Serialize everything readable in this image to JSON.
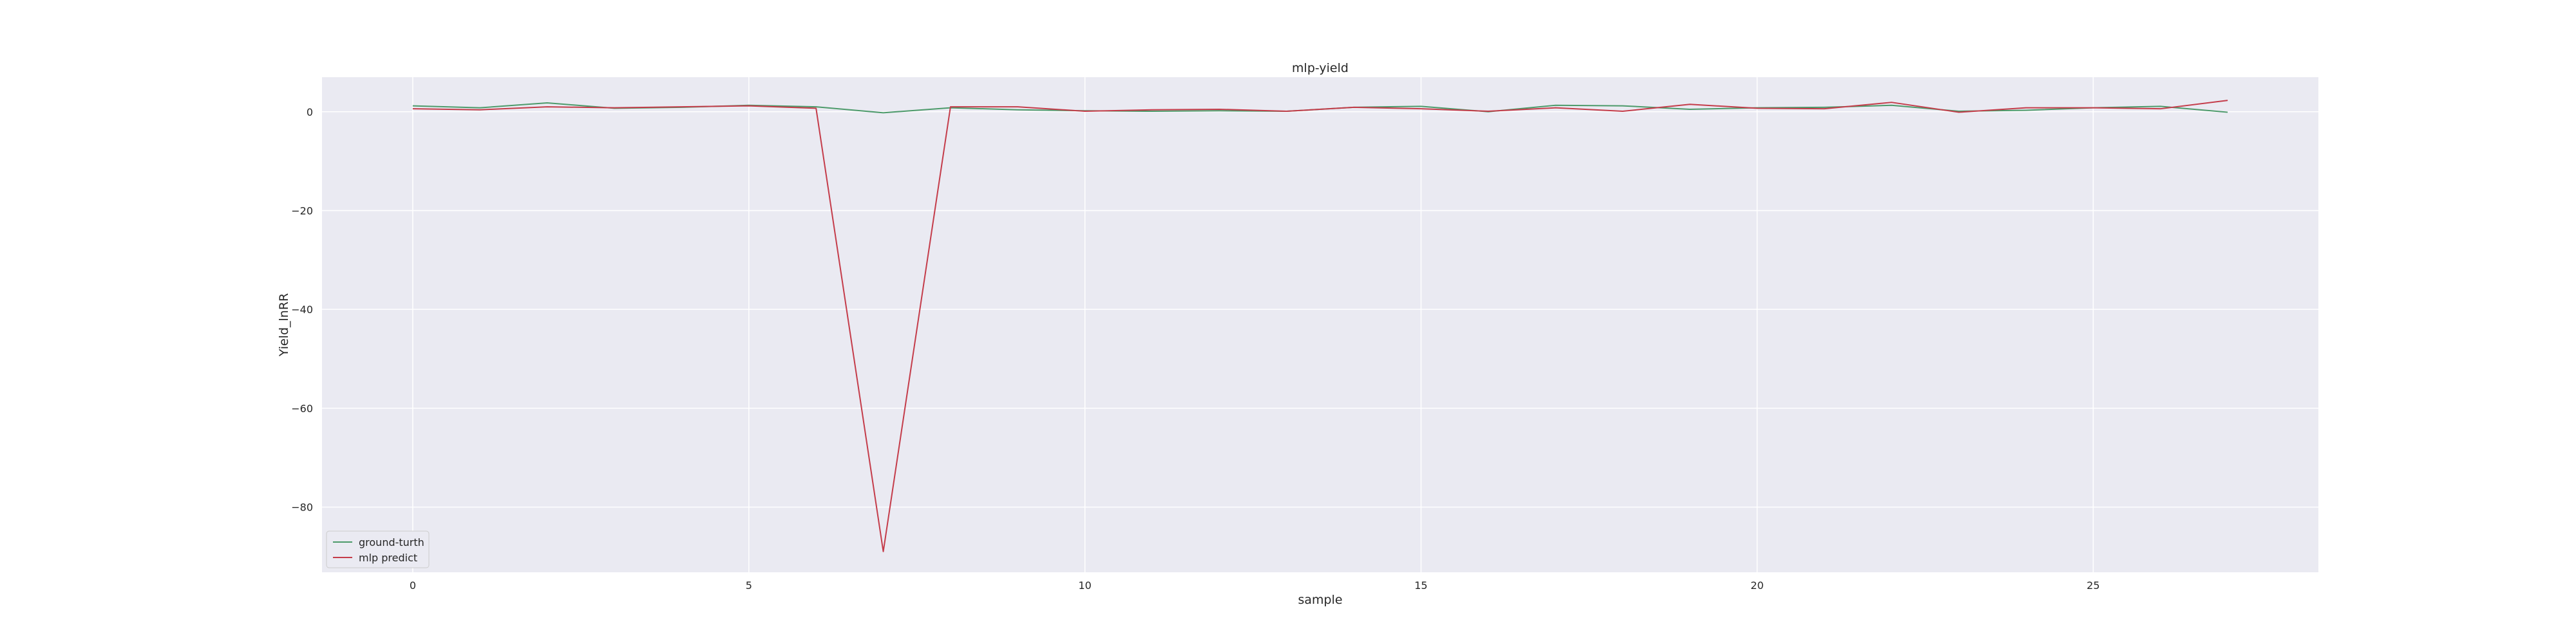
{
  "chart_data": {
    "type": "line",
    "title": "mlp-yield",
    "xlabel": "sample",
    "ylabel": "Yield_lnRR",
    "xlim": [
      -1.35,
      28.35
    ],
    "ylim": [
      -93.2,
      7.0
    ],
    "xticks": [
      0,
      5,
      10,
      15,
      20,
      25
    ],
    "yticks": [
      0,
      -20,
      -40,
      -60,
      -80
    ],
    "ytick_labels": [
      "0",
      "−20",
      "−40",
      "−60",
      "−80"
    ],
    "grid": true,
    "legend_position": "lower-left",
    "x": [
      0,
      1,
      2,
      3,
      4,
      5,
      6,
      7,
      8,
      9,
      10,
      11,
      12,
      13,
      14,
      15,
      16,
      17,
      18,
      19,
      20,
      21,
      22,
      23,
      24,
      25,
      26,
      27
    ],
    "series": [
      {
        "name": "ground-turth",
        "color": "#4c9a6a",
        "values": [
          1.2,
          0.8,
          1.8,
          0.7,
          0.9,
          1.3,
          1.0,
          -0.2,
          0.8,
          0.4,
          0.2,
          0.1,
          0.2,
          0.1,
          0.9,
          1.1,
          0.0,
          1.3,
          1.2,
          0.5,
          0.8,
          0.9,
          1.3,
          0.1,
          0.3,
          0.8,
          1.1,
          -0.1
        ]
      },
      {
        "name": "mlp predict",
        "color": "#c43c4a",
        "values": [
          0.6,
          0.4,
          1.0,
          0.8,
          1.0,
          1.2,
          0.7,
          -89.0,
          1.0,
          1.0,
          0.1,
          0.4,
          0.5,
          0.1,
          0.9,
          0.6,
          0.1,
          0.8,
          0.1,
          1.5,
          0.7,
          0.6,
          1.9,
          -0.1,
          0.8,
          0.8,
          0.6,
          2.3
        ]
      }
    ]
  }
}
